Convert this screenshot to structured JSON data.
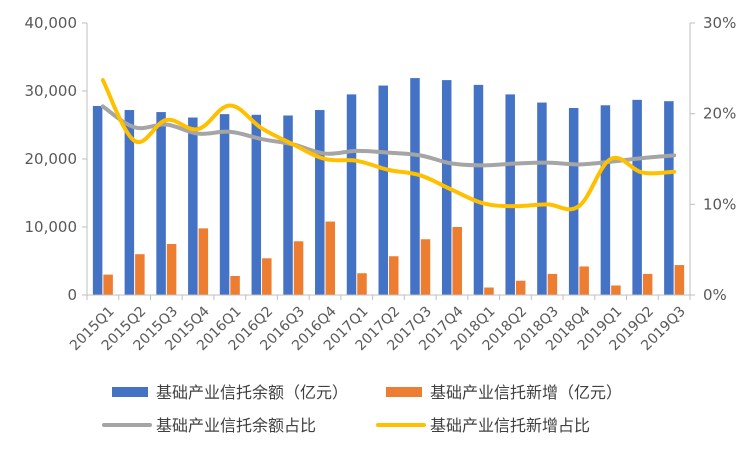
{
  "chart_data": {
    "type": "bar",
    "categories": [
      "2015Q1",
      "2015Q2",
      "2015Q3",
      "2015Q4",
      "2016Q1",
      "2016Q2",
      "2016Q3",
      "2016Q4",
      "2017Q1",
      "2017Q2",
      "2017Q3",
      "2017Q4",
      "2018Q1",
      "2018Q2",
      "2018Q3",
      "2018Q4",
      "2019Q1",
      "2019Q2",
      "2019Q3"
    ],
    "y_left": {
      "ylim": [
        0,
        40000
      ],
      "ticks": [
        "0",
        "10,000",
        "20,000",
        "30,000",
        "40,000"
      ],
      "tick_values": [
        0,
        10000,
        20000,
        30000,
        40000
      ]
    },
    "y_right": {
      "ylim": [
        0,
        30
      ],
      "ticks": [
        "0%",
        "10%",
        "20%",
        "30%"
      ],
      "tick_values": [
        0,
        10,
        20,
        30
      ]
    },
    "grid": false,
    "legend_position": "bottom",
    "series": [
      {
        "name": "基础产业信托余额（亿元）",
        "type": "bar",
        "axis": "left",
        "color": "#4472C4",
        "values": [
          27800,
          27200,
          26900,
          26100,
          26600,
          26500,
          26400,
          27200,
          29500,
          30800,
          31900,
          31600,
          30900,
          29500,
          28300,
          27500,
          27900,
          28700,
          28500
        ]
      },
      {
        "name": "基础产业信托新增（亿元）",
        "type": "bar",
        "axis": "left",
        "color": "#ED7D31",
        "values": [
          3000,
          6000,
          7500,
          9800,
          2800,
          5400,
          7900,
          10800,
          3200,
          5700,
          8200,
          10000,
          1100,
          2100,
          3100,
          4200,
          1400,
          3100,
          4400
        ]
      },
      {
        "name": "基础产业信托余额占比",
        "type": "line",
        "axis": "right",
        "color": "#A5A5A5",
        "values": [
          20.8,
          18.5,
          18.8,
          17.8,
          18.0,
          17.2,
          16.6,
          15.6,
          15.9,
          15.7,
          15.4,
          14.5,
          14.3,
          14.5,
          14.6,
          14.4,
          14.7,
          15.1,
          15.4
        ]
      },
      {
        "name": "基础产业信托新增占比",
        "type": "line",
        "axis": "right",
        "color": "#FFC000",
        "values": [
          23.7,
          17.0,
          19.3,
          18.3,
          20.9,
          18.4,
          16.6,
          15.0,
          14.8,
          13.8,
          13.2,
          11.6,
          10.1,
          9.8,
          10.0,
          9.8,
          15.0,
          13.5,
          13.6
        ]
      }
    ]
  }
}
